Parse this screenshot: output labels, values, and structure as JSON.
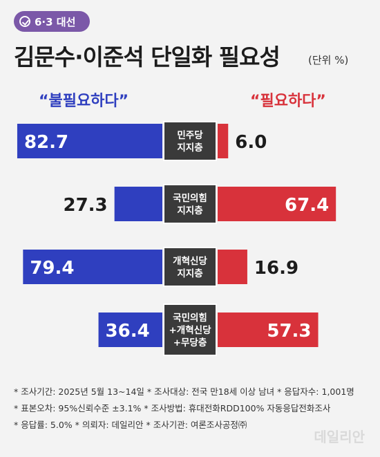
{
  "badge": "6·3 대선",
  "title": "김문수·이준석 단일화 필요성",
  "unit": "(단위 %)",
  "left_header": "“불필요하다”",
  "right_header": "“필요하다”",
  "chart_data": {
    "type": "bar",
    "categories": [
      [
        "민주당",
        "지지층"
      ],
      [
        "국민의힘",
        "지지층"
      ],
      [
        "개혁신당",
        "지지층"
      ],
      [
        "국민의힘",
        "+개혁신당",
        "+무당층"
      ]
    ],
    "series": [
      {
        "name": "불필요하다",
        "color": "#2f3fbf",
        "values": [
          82.7,
          27.3,
          79.4,
          36.4
        ]
      },
      {
        "name": "필요하다",
        "color": "#d8323b",
        "values": [
          6.0,
          67.4,
          16.9,
          57.3
        ]
      }
    ]
  },
  "notes": [
    "* 조사기간: 2025년 5월 13~14일  * 조사대상: 전국 만18세 이상 남녀  * 응답자수: 1,001명",
    "* 표본오차: 95%신뢰수준 ±3.1%  * 조사방법: 휴대전화RDD100% 자동응답전화조사",
    "* 응답률: 5.0%  * 의뢰자: 데일리안  * 조사기관: 여론조사공정㈜"
  ],
  "watermark": "데일리안"
}
